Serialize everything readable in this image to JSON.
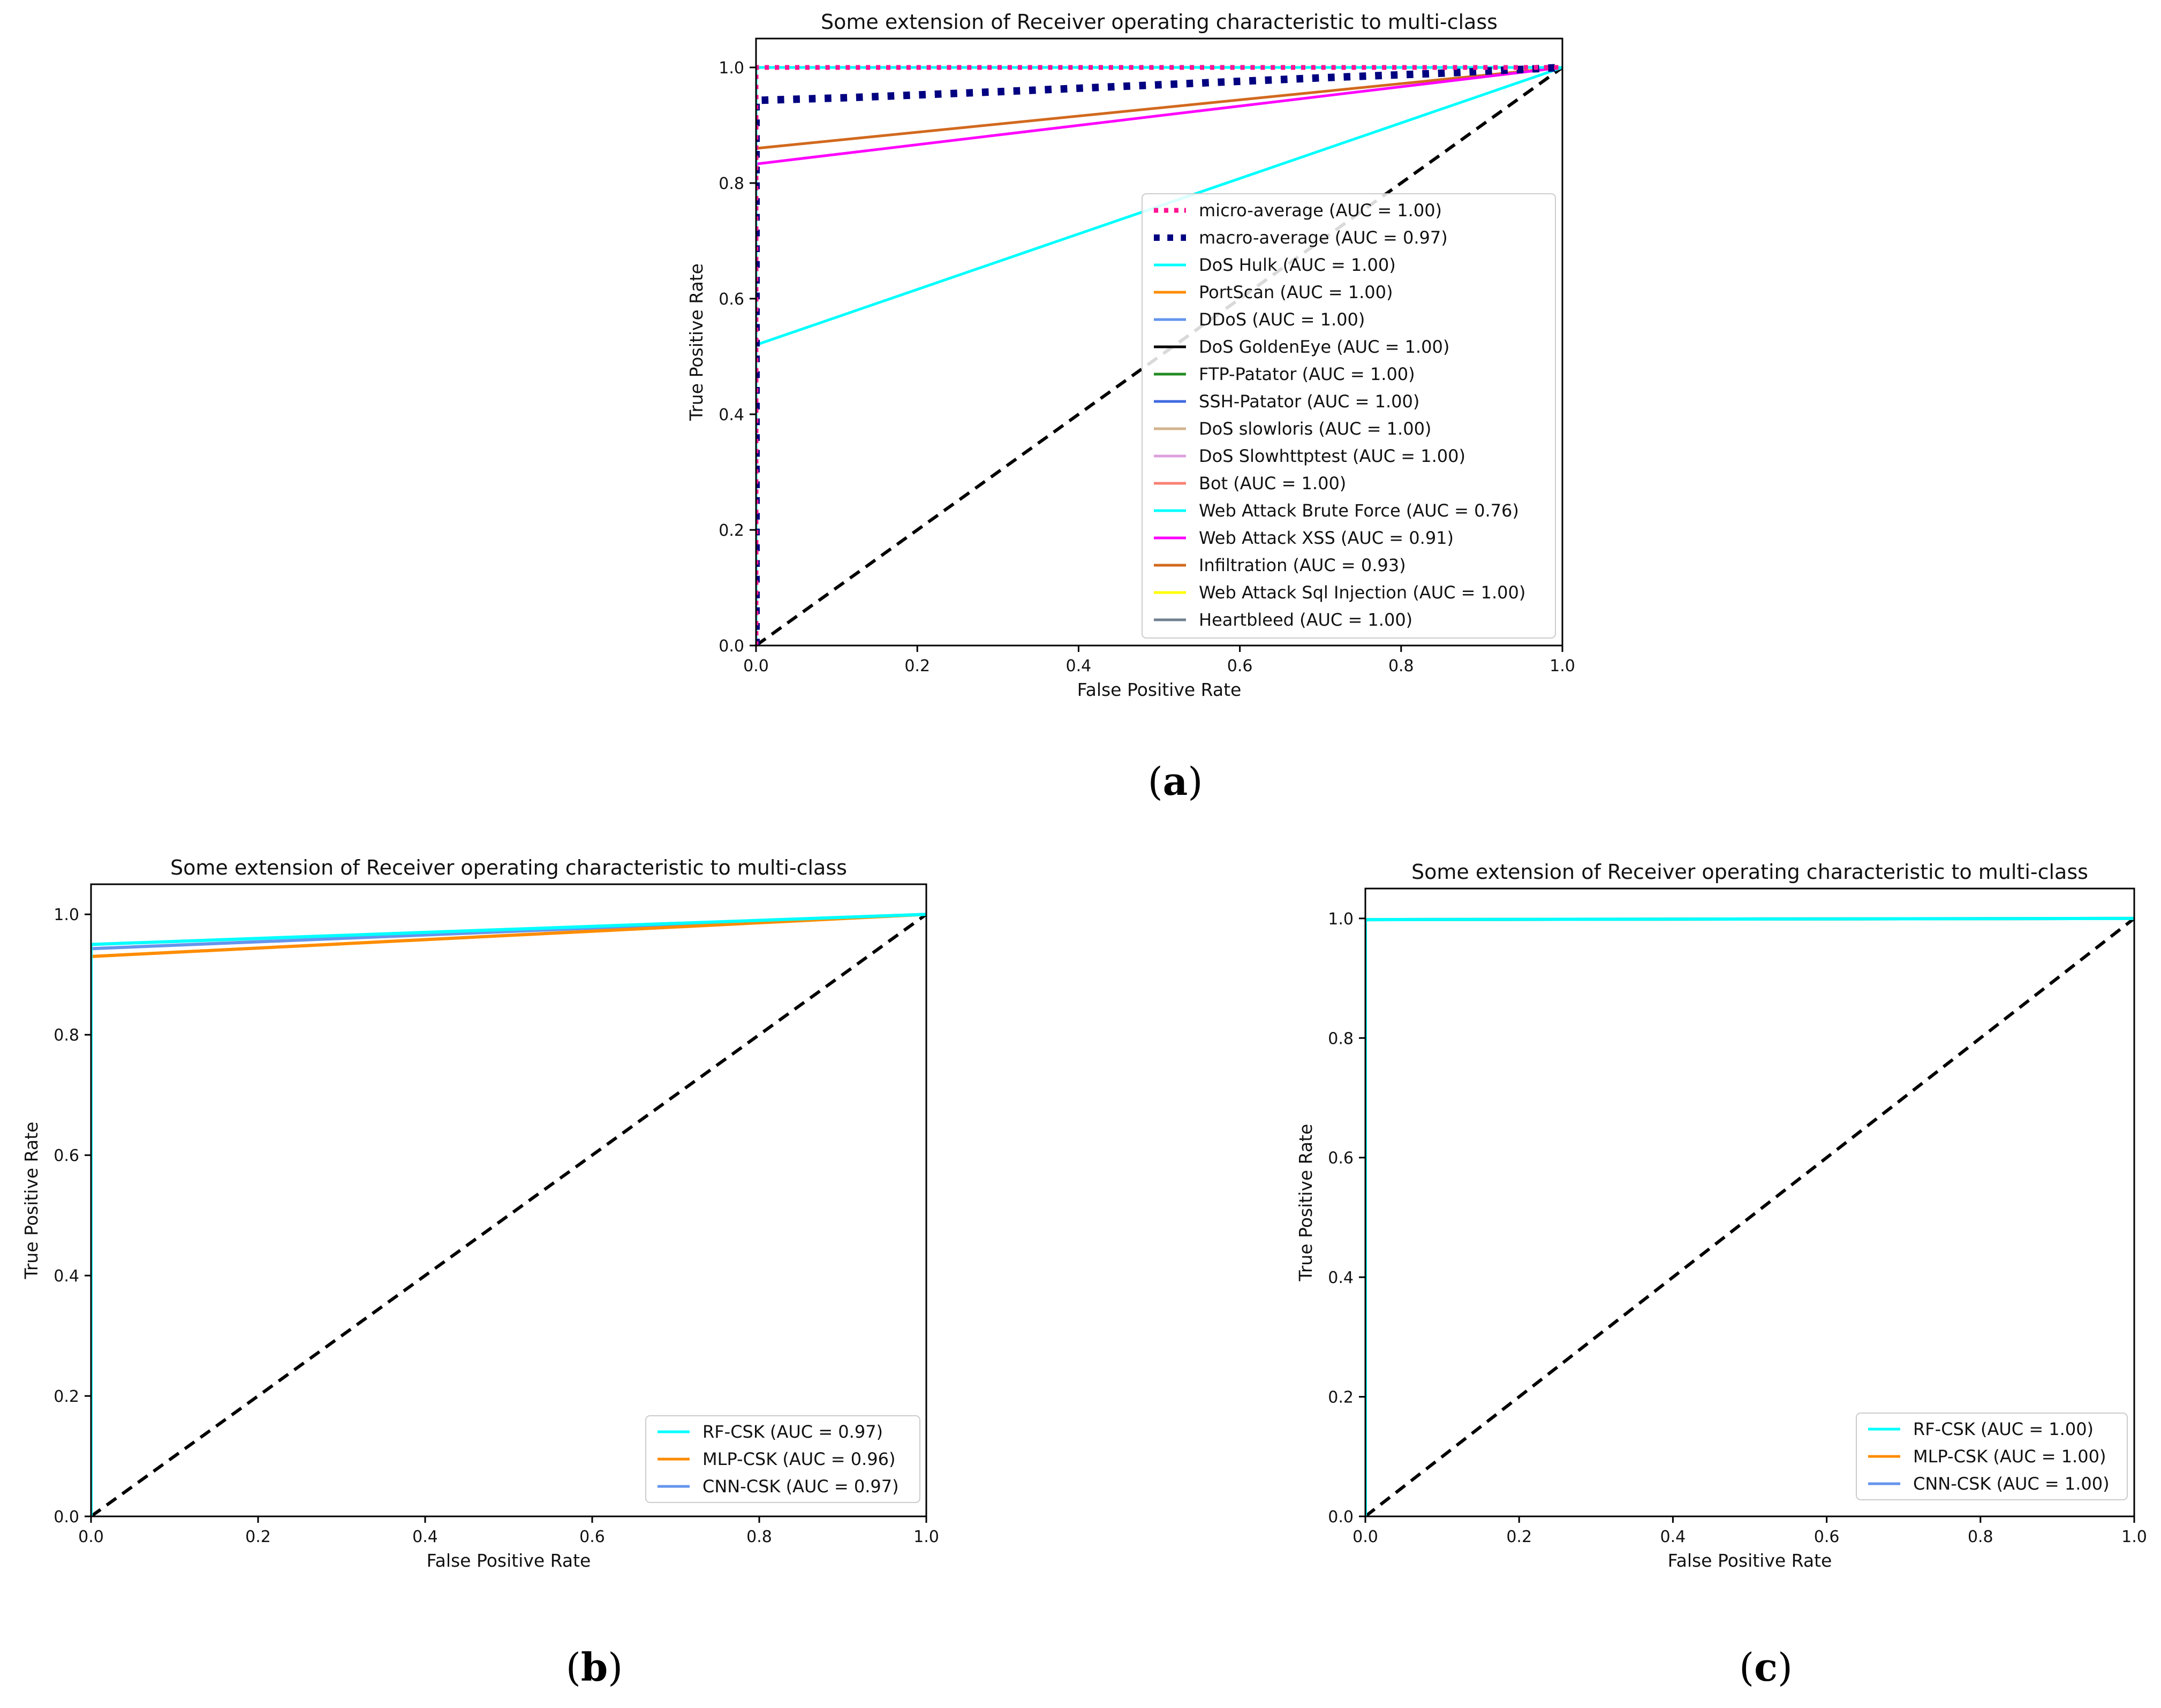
{
  "chart_data": [
    {
      "id": "a",
      "type": "line",
      "title": "Some extension of Receiver operating characteristic to multi-class",
      "xlabel": "False Positive Rate",
      "ylabel": "True Positive Rate",
      "xlim": [
        0,
        1
      ],
      "ylim": [
        0,
        1.05
      ],
      "xticks": [
        "0.0",
        "0.2",
        "0.4",
        "0.6",
        "0.8",
        "1.0"
      ],
      "yticks": [
        "0.0",
        "0.2",
        "0.4",
        "0.6",
        "0.8",
        "1.0"
      ],
      "legend_position": "lower-right",
      "diagonal": {
        "color": "#000000",
        "style": "dashed"
      },
      "series": [
        {
          "name": "micro-average (AUC = 1.00)",
          "color": "#ff1493",
          "style": "dotted",
          "width": 9,
          "x": [
            0,
            0,
            1
          ],
          "y": [
            0,
            1.0,
            1.0
          ]
        },
        {
          "name": "macro-average (AUC = 0.97)",
          "color": "#000080",
          "style": "dotted",
          "width": 14,
          "x": [
            0,
            0,
            0.12,
            0.3,
            0.5,
            0.7,
            0.85,
            1
          ],
          "y": [
            0,
            0.943,
            0.948,
            0.958,
            0.97,
            0.982,
            0.99,
            1.0
          ]
        },
        {
          "name": "DoS Hulk (AUC = 1.00)",
          "color": "#00ffff",
          "style": "solid",
          "width": 5,
          "x": [
            0,
            0,
            1
          ],
          "y": [
            0,
            1.0,
            1.0
          ]
        },
        {
          "name": "PortScan (AUC = 1.00)",
          "color": "#ff8c00",
          "style": "solid",
          "width": 5,
          "x": [
            0,
            0,
            1
          ],
          "y": [
            0,
            1.0,
            1.0
          ]
        },
        {
          "name": "DDoS (AUC = 1.00)",
          "color": "#6495ed",
          "style": "solid",
          "width": 5,
          "x": [
            0,
            0,
            1
          ],
          "y": [
            0,
            1.0,
            1.0
          ]
        },
        {
          "name": "DoS GoldenEye (AUC = 1.00)",
          "color": "#000000",
          "style": "solid",
          "width": 5,
          "x": [
            0,
            0,
            1
          ],
          "y": [
            0,
            1.0,
            1.0
          ]
        },
        {
          "name": "FTP-Patator (AUC = 1.00)",
          "color": "#228b22",
          "style": "solid",
          "width": 5,
          "x": [
            0,
            0,
            1
          ],
          "y": [
            0,
            1.0,
            1.0
          ]
        },
        {
          "name": "SSH-Patator (AUC = 1.00)",
          "color": "#4169e1",
          "style": "solid",
          "width": 5,
          "x": [
            0,
            0,
            1
          ],
          "y": [
            0,
            1.0,
            1.0
          ]
        },
        {
          "name": "DoS slowloris (AUC = 1.00)",
          "color": "#d2b48c",
          "style": "solid",
          "width": 5,
          "x": [
            0,
            0,
            1
          ],
          "y": [
            0,
            1.0,
            1.0
          ]
        },
        {
          "name": "DoS Slowhttptest (AUC = 1.00)",
          "color": "#dda0dd",
          "style": "solid",
          "width": 5,
          "x": [
            0,
            0,
            1
          ],
          "y": [
            0,
            1.0,
            1.0
          ]
        },
        {
          "name": "Bot (AUC = 1.00)",
          "color": "#fa8072",
          "style": "solid",
          "width": 5,
          "x": [
            0,
            0,
            1
          ],
          "y": [
            0,
            1.0,
            1.0
          ]
        },
        {
          "name": "Web Attack Brute Force (AUC = 0.76)",
          "color": "#00ffff",
          "style": "solid",
          "width": 5,
          "x": [
            0,
            0,
            1
          ],
          "y": [
            0,
            0.52,
            1.0
          ]
        },
        {
          "name": "Web Attack XSS (AUC = 0.91)",
          "color": "#ff00ff",
          "style": "solid",
          "width": 5,
          "x": [
            0,
            0,
            1
          ],
          "y": [
            0,
            0.833,
            1.0
          ]
        },
        {
          "name": "Infiltration (AUC = 0.93)",
          "color": "#d2691e",
          "style": "solid",
          "width": 5,
          "x": [
            0,
            0,
            1
          ],
          "y": [
            0,
            0.86,
            1.0
          ]
        },
        {
          "name": "Web Attack Sql Injection (AUC = 1.00)",
          "color": "#ffff00",
          "style": "solid",
          "width": 5,
          "x": [
            0,
            0,
            1
          ],
          "y": [
            0,
            1.0,
            1.0
          ]
        },
        {
          "name": "Heartbleed (AUC = 1.00)",
          "color": "#708090",
          "style": "solid",
          "width": 5,
          "x": [
            0,
            0,
            1
          ],
          "y": [
            0,
            1.0,
            1.0
          ]
        }
      ],
      "caption": "a"
    },
    {
      "id": "b",
      "type": "line",
      "title": "Some extension of Receiver operating characteristic to multi-class",
      "xlabel": "False Positive Rate",
      "ylabel": "True Positive Rate",
      "xlim": [
        0,
        1
      ],
      "ylim": [
        0,
        1.05
      ],
      "xticks": [
        "0.0",
        "0.2",
        "0.4",
        "0.6",
        "0.8",
        "1.0"
      ],
      "yticks": [
        "0.0",
        "0.2",
        "0.4",
        "0.6",
        "0.8",
        "1.0"
      ],
      "legend_position": "lower-right",
      "diagonal": {
        "color": "#000000",
        "style": "dashed"
      },
      "series": [
        {
          "name": "RF-CSK (AUC = 0.97)",
          "color": "#00ffff",
          "style": "solid",
          "width": 6,
          "x": [
            0,
            0,
            1
          ],
          "y": [
            0,
            0.95,
            1.0
          ]
        },
        {
          "name": "MLP-CSK (AUC = 0.96)",
          "color": "#ff8c00",
          "style": "solid",
          "width": 6,
          "x": [
            0,
            0,
            1
          ],
          "y": [
            0,
            0.93,
            1.0
          ]
        },
        {
          "name": "CNN-CSK (AUC = 0.97)",
          "color": "#6495ed",
          "style": "solid",
          "width": 6,
          "x": [
            0,
            0,
            1
          ],
          "y": [
            0,
            0.943,
            1.0
          ]
        }
      ],
      "caption": "b"
    },
    {
      "id": "c",
      "type": "line",
      "title": "Some extension of Receiver operating characteristic to multi-class",
      "xlabel": "False Positive Rate",
      "ylabel": "True Positive Rate",
      "xlim": [
        0,
        1
      ],
      "ylim": [
        0,
        1.05
      ],
      "xticks": [
        "0.0",
        "0.2",
        "0.4",
        "0.6",
        "0.8",
        "1.0"
      ],
      "yticks": [
        "0.0",
        "0.2",
        "0.4",
        "0.6",
        "0.8",
        "1.0"
      ],
      "legend_position": "lower-right",
      "diagonal": {
        "color": "#000000",
        "style": "dashed"
      },
      "series": [
        {
          "name": "RF-CSK (AUC = 1.00)",
          "color": "#00ffff",
          "style": "solid",
          "width": 6,
          "x": [
            0,
            0,
            1
          ],
          "y": [
            0,
            0.998,
            1.0
          ]
        },
        {
          "name": "MLP-CSK (AUC = 1.00)",
          "color": "#ff8c00",
          "style": "solid",
          "width": 6,
          "x": [
            0,
            0,
            1
          ],
          "y": [
            0,
            0.998,
            1.0
          ]
        },
        {
          "name": "CNN-CSK (AUC = 1.00)",
          "color": "#6495ed",
          "style": "solid",
          "width": 6,
          "x": [
            0,
            0,
            1
          ],
          "y": [
            0,
            0.998,
            1.0
          ]
        }
      ],
      "caption": "c"
    }
  ]
}
